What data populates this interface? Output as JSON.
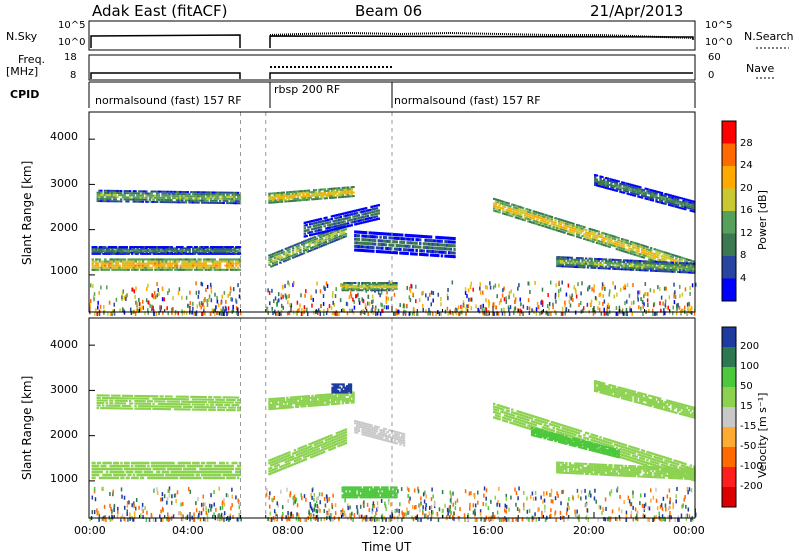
{
  "header": {
    "station": "Adak East (fitACF)",
    "beam": "Beam 06",
    "date": "21/Apr/2013"
  },
  "panels": {
    "nsky_label": "N.Sky",
    "nsearch_label": "N.Search",
    "freq_label": "Freq.",
    "freq_unit": "[MHz]",
    "nave_label": "Nave",
    "cpid_label": "CPID",
    "nsky_ticks": [
      "10^5",
      "10^0"
    ],
    "nsearch_ticks": [
      "10^5",
      "10^0"
    ],
    "freq_ticks": [
      "18",
      "8"
    ],
    "nave_ticks": [
      "60",
      "0"
    ],
    "cpid_segments": [
      {
        "label": "normalsound (fast) 157 RF",
        "start_h": 0,
        "end_h": 6
      },
      {
        "label": "rbsp 200 RF",
        "start_h": 7,
        "end_h": 12
      },
      {
        "label": "normalsound (fast) 157 RF",
        "start_h": 12,
        "end_h": 24
      }
    ]
  },
  "axes": {
    "ylabel": "Slant Range [km]",
    "xlabel": "Time UT",
    "x_ticks": [
      "00:00",
      "04:00",
      "08:00",
      "12:00",
      "16:00",
      "20:00",
      "00:00"
    ],
    "y_ticks": [
      "1000",
      "2000",
      "3000",
      "4000"
    ]
  },
  "colorbars": {
    "power": {
      "label": "Power [dB]",
      "ticks": [
        "28",
        "24",
        "20",
        "16",
        "12",
        "8",
        "4"
      ],
      "colors": [
        "#ff0000",
        "#ff6a00",
        "#ffaa00",
        "#c8c832",
        "#55a05a",
        "#3c7850",
        "#2846a0",
        "#0000ff"
      ]
    },
    "velocity": {
      "label": "Velocity [m s⁻¹]",
      "ticks": [
        "200",
        "100",
        "50",
        "15",
        "-15",
        "-50",
        "-100",
        "-200"
      ],
      "colors": [
        "#1e3ca0",
        "#2d7850",
        "#4cc83c",
        "#8cd250",
        "#c8c8c8",
        "#ffaa32",
        "#ff6a00",
        "#ff1e1e",
        "#dc0000"
      ]
    }
  },
  "chart_data": [
    {
      "type": "heatmap",
      "panel": "power",
      "x_unit": "hours UT",
      "y_unit": "km",
      "xlim": [
        0,
        24
      ],
      "ylim": [
        180,
        4600
      ],
      "data_gap_hours": [
        6,
        7
      ],
      "colorbar_label": "Power [dB]",
      "colorbar_range": [
        0,
        30
      ],
      "bands": [
        {
          "x": [
            0.1,
            6
          ],
          "y_center": [
            1230,
            1230
          ],
          "width": 230,
          "value": 24
        },
        {
          "x": [
            0.1,
            6
          ],
          "y_center": [
            1550,
            1550
          ],
          "width": 150,
          "value": 12
        },
        {
          "x": [
            0.3,
            6
          ],
          "y_center": [
            2750,
            2700
          ],
          "width": 230,
          "value": 16
        },
        {
          "x": [
            7.1,
            10.2
          ],
          "y_center": [
            1300,
            2000
          ],
          "width": 260,
          "value": 18
        },
        {
          "x": [
            7.1,
            10.5
          ],
          "y_center": [
            2700,
            2850
          ],
          "width": 200,
          "value": 22
        },
        {
          "x": [
            8.5,
            11.5
          ],
          "y_center": [
            2000,
            2400
          ],
          "width": 300,
          "value": 10
        },
        {
          "x": [
            10.0,
            12.2
          ],
          "y_center": [
            750,
            750
          ],
          "width": 160,
          "value": 20
        },
        {
          "x": [
            10.5,
            14.5
          ],
          "y_center": [
            1750,
            1600
          ],
          "width": 400,
          "value": 10
        },
        {
          "x": [
            16.0,
            24
          ],
          "y_center": [
            2550,
            1150
          ],
          "width": 260,
          "value": 22
        },
        {
          "x": [
            18.5,
            24
          ],
          "y_center": [
            1300,
            1150
          ],
          "width": 200,
          "value": 16
        },
        {
          "x": [
            20.0,
            24
          ],
          "y_center": [
            3100,
            2500
          ],
          "width": 220,
          "value": 12
        }
      ]
    },
    {
      "type": "heatmap",
      "panel": "velocity",
      "x_unit": "hours UT",
      "y_unit": "km",
      "xlim": [
        0,
        24
      ],
      "ylim": [
        180,
        4600
      ],
      "data_gap_hours": [
        6,
        7
      ],
      "colorbar_label": "Velocity [m s⁻¹]",
      "colorbar_range": [
        -200,
        200
      ],
      "bands": [
        {
          "x": [
            0.1,
            6
          ],
          "y_center": [
            1230,
            1230
          ],
          "width": 330,
          "value": 0
        },
        {
          "x": [
            0.3,
            6
          ],
          "y_center": [
            2750,
            2700
          ],
          "width": 280,
          "value": 0
        },
        {
          "x": [
            7.1,
            10.2
          ],
          "y_center": [
            1300,
            2000
          ],
          "width": 300,
          "value": 0
        },
        {
          "x": [
            7.1,
            10.5
          ],
          "y_center": [
            2700,
            2850
          ],
          "width": 220,
          "value": 0
        },
        {
          "x": [
            10.0,
            12.2
          ],
          "y_center": [
            750,
            750
          ],
          "width": 220,
          "value": 40
        },
        {
          "x": [
            10.5,
            12.5
          ],
          "y_center": [
            2200,
            1900
          ],
          "width": 250,
          "value": -40
        },
        {
          "x": [
            9.6,
            10.4
          ],
          "y_center": [
            3050,
            3050
          ],
          "width": 180,
          "value": 120
        },
        {
          "x": [
            16.0,
            24
          ],
          "y_center": [
            2550,
            1150
          ],
          "width": 300,
          "value": 0
        },
        {
          "x": [
            17.5,
            21.0
          ],
          "y_center": [
            2100,
            1600
          ],
          "width": 160,
          "value": 30
        },
        {
          "x": [
            18.5,
            24
          ],
          "y_center": [
            1300,
            1150
          ],
          "width": 220,
          "value": 0
        },
        {
          "x": [
            20.0,
            24
          ],
          "y_center": [
            3100,
            2500
          ],
          "width": 220,
          "value": 0
        }
      ]
    }
  ]
}
